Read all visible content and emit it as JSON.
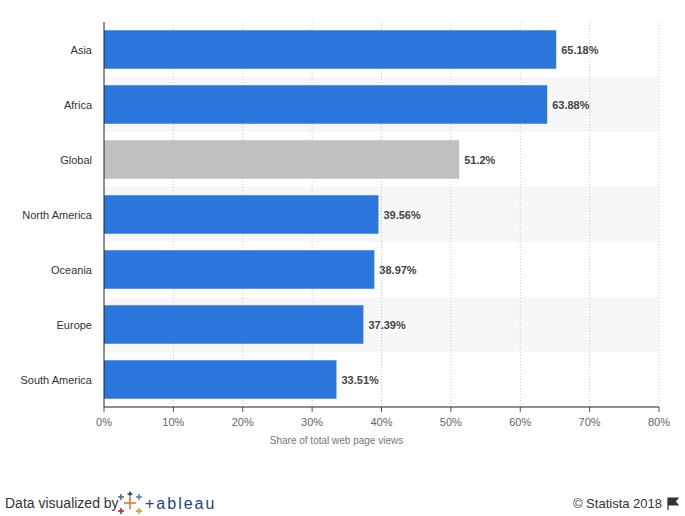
{
  "chart_data": {
    "type": "bar",
    "orientation": "horizontal",
    "categories": [
      "Asia",
      "Africa",
      "Global",
      "North America",
      "Oceania",
      "Europe",
      "South America"
    ],
    "values": [
      65.18,
      63.88,
      51.2,
      39.56,
      38.97,
      37.39,
      33.51
    ],
    "value_labels": [
      "65.18%",
      "63.88%",
      "51.2%",
      "39.56%",
      "38.97%",
      "37.39%",
      "33.51%"
    ],
    "colors": [
      "#2a76dd",
      "#2a76dd",
      "#c0c0c0",
      "#2a76dd",
      "#2a76dd",
      "#2a76dd",
      "#2a76dd"
    ],
    "data_labels": true,
    "x_label": "Share of total web page views",
    "xlim": [
      0,
      80
    ],
    "xticks": [
      {
        "value": 0,
        "label": "0%"
      },
      {
        "value": 10,
        "label": "10%"
      },
      {
        "value": 20,
        "label": "20%"
      },
      {
        "value": 30,
        "label": "30%"
      },
      {
        "value": 40,
        "label": "40%"
      },
      {
        "value": 50,
        "label": "50%"
      },
      {
        "value": 60,
        "label": "60%"
      },
      {
        "value": 70,
        "label": "70%"
      },
      {
        "value": 80,
        "label": "80%"
      }
    ],
    "grid": true,
    "annotations": [
      "Data visualized by",
      "+ableau",
      "© Statista 2018"
    ]
  }
}
